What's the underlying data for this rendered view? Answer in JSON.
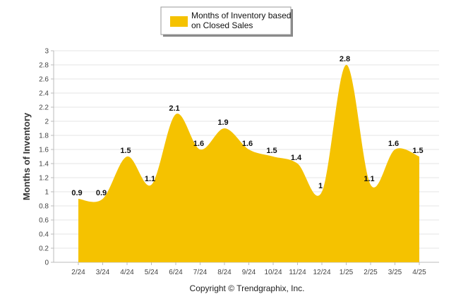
{
  "chart_data": {
    "type": "area",
    "categories": [
      "2/24",
      "3/24",
      "4/24",
      "5/24",
      "6/24",
      "7/24",
      "8/24",
      "9/24",
      "10/24",
      "11/24",
      "12/24",
      "1/25",
      "2/25",
      "3/25",
      "4/25"
    ],
    "series": [
      {
        "name": "Months of Inventory based on Closed Sales",
        "values": [
          0.9,
          0.9,
          1.5,
          1.1,
          2.1,
          1.6,
          1.9,
          1.6,
          1.5,
          1.4,
          1,
          2.8,
          1.1,
          1.6,
          1.5
        ],
        "labels": [
          "0.9",
          "0.9",
          "1.5",
          "1.1",
          "2.1",
          "1.6",
          "1.9",
          "1.6",
          "1.5",
          "1.4",
          "1",
          "2.8",
          "1.1",
          "1.6",
          "1.5"
        ],
        "color": "#F5C200"
      }
    ],
    "legend_lines": [
      "Months of Inventory based",
      "on Closed Sales"
    ],
    "ylabel": "Months of Inventory",
    "xlabel": "",
    "ylim": [
      0,
      3
    ],
    "yticks": [
      "0",
      "0.2",
      "0.4",
      "0.6",
      "0.8",
      "1",
      "1.2",
      "1.4",
      "1.6",
      "1.8",
      "2",
      "2.2",
      "2.4",
      "2.6",
      "2.8",
      "3"
    ],
    "grid": true,
    "legend_position": "top-center"
  },
  "footer": {
    "credit": "Copyright © Trendgraphix, Inc."
  }
}
